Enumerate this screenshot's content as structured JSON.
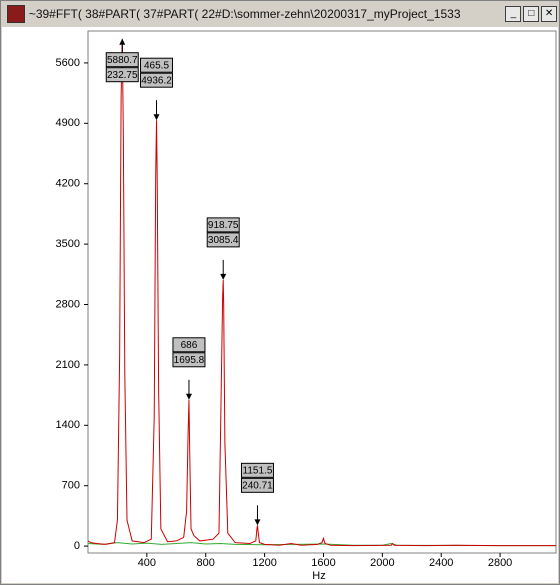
{
  "window": {
    "title": "~39#FFT( 38#PART( 37#PART( 22#D:\\sommer-zehn\\20200317_myProject_1533"
  },
  "chart_data": {
    "type": "line",
    "x_label": "Hz",
    "xlim": [
      0,
      3180
    ],
    "ylim": [
      -80,
      5970
    ],
    "xticks": [
      400,
      800,
      1200,
      1600,
      2000,
      2400,
      2800
    ],
    "yticks": [
      0,
      700,
      1400,
      2100,
      2800,
      3500,
      4200,
      4900,
      5600
    ],
    "grid": false,
    "series": [
      {
        "color": "#cc0000",
        "x": [
          0,
          20,
          60,
          120,
          180,
          200,
          215,
          225,
          232.75,
          240,
          250,
          265,
          300,
          380,
          430,
          450,
          460,
          465.5,
          470,
          480,
          495,
          540,
          600,
          650,
          670,
          680,
          686,
          692,
          700,
          720,
          760,
          850,
          890,
          905,
          915,
          918.75,
          922,
          930,
          950,
          1000,
          1100,
          1140,
          1148,
          1151.5,
          1155,
          1165,
          1200,
          1300,
          1380,
          1450,
          1560,
          1590,
          1600,
          1610,
          1650,
          1800,
          2060,
          2070,
          2080,
          2300,
          2500,
          2800,
          3180
        ],
        "values": [
          60,
          40,
          30,
          20,
          40,
          300,
          2200,
          5200,
          5880.7,
          4800,
          2000,
          300,
          60,
          40,
          80,
          1500,
          4300,
          4936.2,
          4300,
          1800,
          200,
          50,
          60,
          100,
          400,
          1300,
          1695.8,
          1000,
          200,
          120,
          60,
          80,
          150,
          1800,
          2900,
          3085.4,
          2800,
          1200,
          150,
          40,
          30,
          60,
          200,
          240.71,
          180,
          40,
          20,
          10,
          30,
          10,
          20,
          40,
          90,
          30,
          10,
          5,
          10,
          30,
          10,
          5,
          10,
          5,
          5
        ]
      },
      {
        "color": "#33aa33",
        "x": [
          0,
          100,
          200,
          300,
          400,
          500,
          600,
          700,
          800,
          900,
          1000,
          1200,
          1400,
          1600,
          1800,
          2000,
          2060,
          2100,
          2400,
          2800,
          3180
        ],
        "values": [
          30,
          20,
          40,
          25,
          35,
          20,
          30,
          40,
          25,
          30,
          20,
          15,
          20,
          25,
          10,
          10,
          30,
          10,
          8,
          5,
          5
        ]
      }
    ],
    "annotations": [
      {
        "y": 5880.7,
        "x": 232.75
      },
      {
        "x": 465.5,
        "y": 4936.2
      },
      {
        "x": 686,
        "y": 1695.8
      },
      {
        "x": 918.75,
        "y": 3085.4
      },
      {
        "x": 1151.5,
        "y": 240.71
      }
    ]
  }
}
